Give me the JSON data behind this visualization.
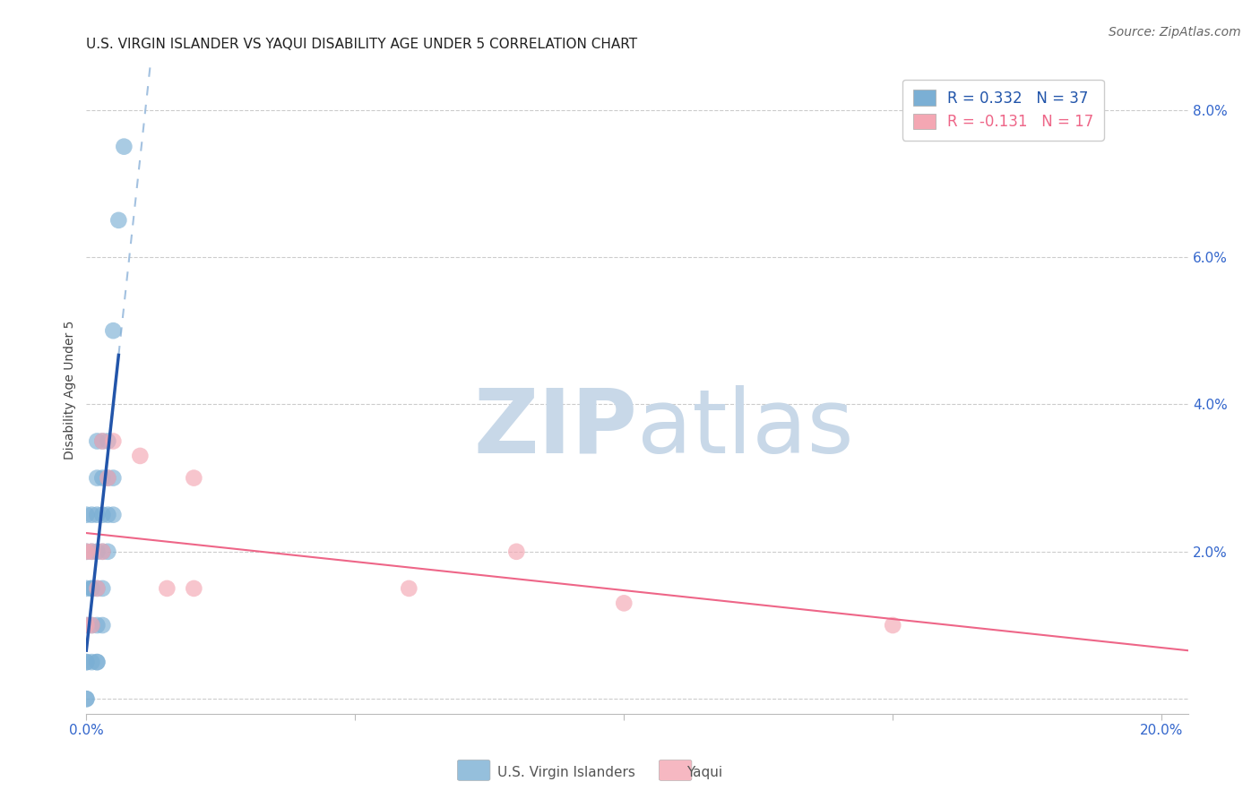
{
  "title": "U.S. VIRGIN ISLANDER VS YAQUI DISABILITY AGE UNDER 5 CORRELATION CHART",
  "source": "Source: ZipAtlas.com",
  "ylabel": "Disability Age Under 5",
  "xlim": [
    0.0,
    0.205
  ],
  "ylim": [
    -0.002,
    0.086
  ],
  "xticks": [
    0.0,
    0.05,
    0.1,
    0.15,
    0.2
  ],
  "xticklabels": [
    "0.0%",
    "",
    "",
    "",
    "20.0%"
  ],
  "yticks": [
    0.0,
    0.02,
    0.04,
    0.06,
    0.08
  ],
  "yticklabels": [
    "",
    "2.0%",
    "4.0%",
    "6.0%",
    "8.0%"
  ],
  "r_blue": 0.332,
  "n_blue": 37,
  "r_pink": -0.131,
  "n_pink": 17,
  "blue_scatter_x": [
    0.0,
    0.0,
    0.0,
    0.0,
    0.0,
    0.0,
    0.0,
    0.0,
    0.001,
    0.001,
    0.001,
    0.001,
    0.001,
    0.001,
    0.002,
    0.002,
    0.002,
    0.002,
    0.002,
    0.002,
    0.002,
    0.002,
    0.003,
    0.003,
    0.003,
    0.003,
    0.003,
    0.003,
    0.004,
    0.004,
    0.004,
    0.004,
    0.005,
    0.005,
    0.005,
    0.006,
    0.007
  ],
  "blue_scatter_y": [
    0.0,
    0.0,
    0.005,
    0.005,
    0.01,
    0.015,
    0.02,
    0.025,
    0.005,
    0.01,
    0.015,
    0.015,
    0.02,
    0.025,
    0.005,
    0.005,
    0.01,
    0.015,
    0.02,
    0.025,
    0.03,
    0.035,
    0.01,
    0.015,
    0.02,
    0.025,
    0.03,
    0.035,
    0.02,
    0.025,
    0.03,
    0.035,
    0.025,
    0.03,
    0.05,
    0.065,
    0.075
  ],
  "pink_scatter_x": [
    0.0,
    0.0,
    0.001,
    0.001,
    0.002,
    0.003,
    0.003,
    0.004,
    0.005,
    0.01,
    0.015,
    0.02,
    0.02,
    0.06,
    0.08,
    0.1,
    0.15
  ],
  "pink_scatter_y": [
    0.01,
    0.02,
    0.01,
    0.02,
    0.015,
    0.02,
    0.035,
    0.03,
    0.035,
    0.033,
    0.015,
    0.015,
    0.03,
    0.015,
    0.02,
    0.013,
    0.01
  ],
  "blue_color": "#7BAFD4",
  "pink_color": "#F4A7B3",
  "blue_line_color": "#2255AA",
  "blue_dash_color": "#99BBDD",
  "pink_line_color": "#EE6688",
  "background_color": "#FFFFFF",
  "grid_color": "#CCCCCC",
  "watermark_color": "#C8D8E8",
  "title_fontsize": 11,
  "axis_label_fontsize": 10,
  "tick_fontsize": 11,
  "legend_fontsize": 12,
  "scatter_size": 180
}
